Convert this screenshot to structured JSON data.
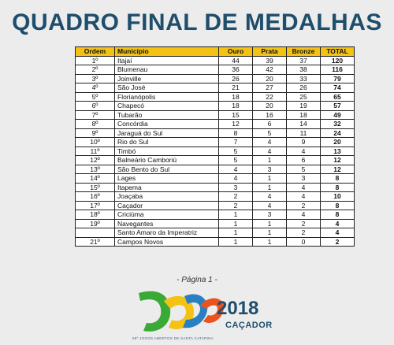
{
  "title": "QUADRO FINAL DE MEDALHAS",
  "table": {
    "headers": {
      "ordem": "Ordem",
      "municipio": "Município",
      "ouro": "Ouro",
      "prata": "Prata",
      "bronze": "Bronze",
      "total": "TOTAL"
    },
    "rows": [
      {
        "ordem": "1º",
        "municipio": "Itajaí",
        "ouro": "44",
        "prata": "39",
        "bronze": "37",
        "total": "120"
      },
      {
        "ordem": "2º",
        "municipio": "Blumenau",
        "ouro": "36",
        "prata": "42",
        "bronze": "38",
        "total": "116"
      },
      {
        "ordem": "3º",
        "municipio": "Joinville",
        "ouro": "26",
        "prata": "20",
        "bronze": "33",
        "total": "79"
      },
      {
        "ordem": "4º",
        "municipio": "São José",
        "ouro": "21",
        "prata": "27",
        "bronze": "26",
        "total": "74"
      },
      {
        "ordem": "5º",
        "municipio": "Florianópolis",
        "ouro": "18",
        "prata": "22",
        "bronze": "25",
        "total": "65"
      },
      {
        "ordem": "6º",
        "municipio": "Chapecó",
        "ouro": "18",
        "prata": "20",
        "bronze": "19",
        "total": "57"
      },
      {
        "ordem": "7º",
        "municipio": "Tubarão",
        "ouro": "15",
        "prata": "16",
        "bronze": "18",
        "total": "49"
      },
      {
        "ordem": "8º",
        "municipio": "Concórdia",
        "ouro": "12",
        "prata": "6",
        "bronze": "14",
        "total": "32"
      },
      {
        "ordem": "9º",
        "municipio": "Jaraguá do Sul",
        "ouro": "8",
        "prata": "5",
        "bronze": "11",
        "total": "24"
      },
      {
        "ordem": "10º",
        "municipio": "Rio do Sul",
        "ouro": "7",
        "prata": "4",
        "bronze": "9",
        "total": "20"
      },
      {
        "ordem": "11º",
        "municipio": "Timbó",
        "ouro": "5",
        "prata": "4",
        "bronze": "4",
        "total": "13"
      },
      {
        "ordem": "12º",
        "municipio": "Balneário Camboriú",
        "ouro": "5",
        "prata": "1",
        "bronze": "6",
        "total": "12"
      },
      {
        "ordem": "13º",
        "municipio": "São Bento do Sul",
        "ouro": "4",
        "prata": "3",
        "bronze": "5",
        "total": "12"
      },
      {
        "ordem": "14º",
        "municipio": "Lages",
        "ouro": "4",
        "prata": "1",
        "bronze": "3",
        "total": "8"
      },
      {
        "ordem": "15º",
        "municipio": "Itapema",
        "ouro": "3",
        "prata": "1",
        "bronze": "4",
        "total": "8"
      },
      {
        "ordem": "16º",
        "municipio": "Joaçaba",
        "ouro": "2",
        "prata": "4",
        "bronze": "4",
        "total": "10"
      },
      {
        "ordem": "17º",
        "municipio": "Caçador",
        "ouro": "2",
        "prata": "4",
        "bronze": "2",
        "total": "8"
      },
      {
        "ordem": "18º",
        "municipio": "Criciúma",
        "ouro": "1",
        "prata": "3",
        "bronze": "4",
        "total": "8"
      },
      {
        "ordem": "19º",
        "municipio": "Navegantes",
        "ouro": "1",
        "prata": "1",
        "bronze": "2",
        "total": "4"
      },
      {
        "ordem": "",
        "municipio": "Santo Amaro da Imperatriz",
        "ouro": "1",
        "prata": "1",
        "bronze": "2",
        "total": "4"
      },
      {
        "ordem": "21º",
        "municipio": "Campos Novos",
        "ouro": "1",
        "prata": "1",
        "bronze": "0",
        "total": "2"
      }
    ]
  },
  "page_label": "- Página 1 -",
  "logo": {
    "year": "2018",
    "city": "CAÇADOR",
    "subtitle": "58º JOGOS ABERTOS DE SANTA CATARINA",
    "colors": {
      "green": "#3aa935",
      "yellow": "#f4c214",
      "blue": "#2a7fc1",
      "orange": "#e8531e",
      "navy": "#1e4e6b"
    }
  }
}
